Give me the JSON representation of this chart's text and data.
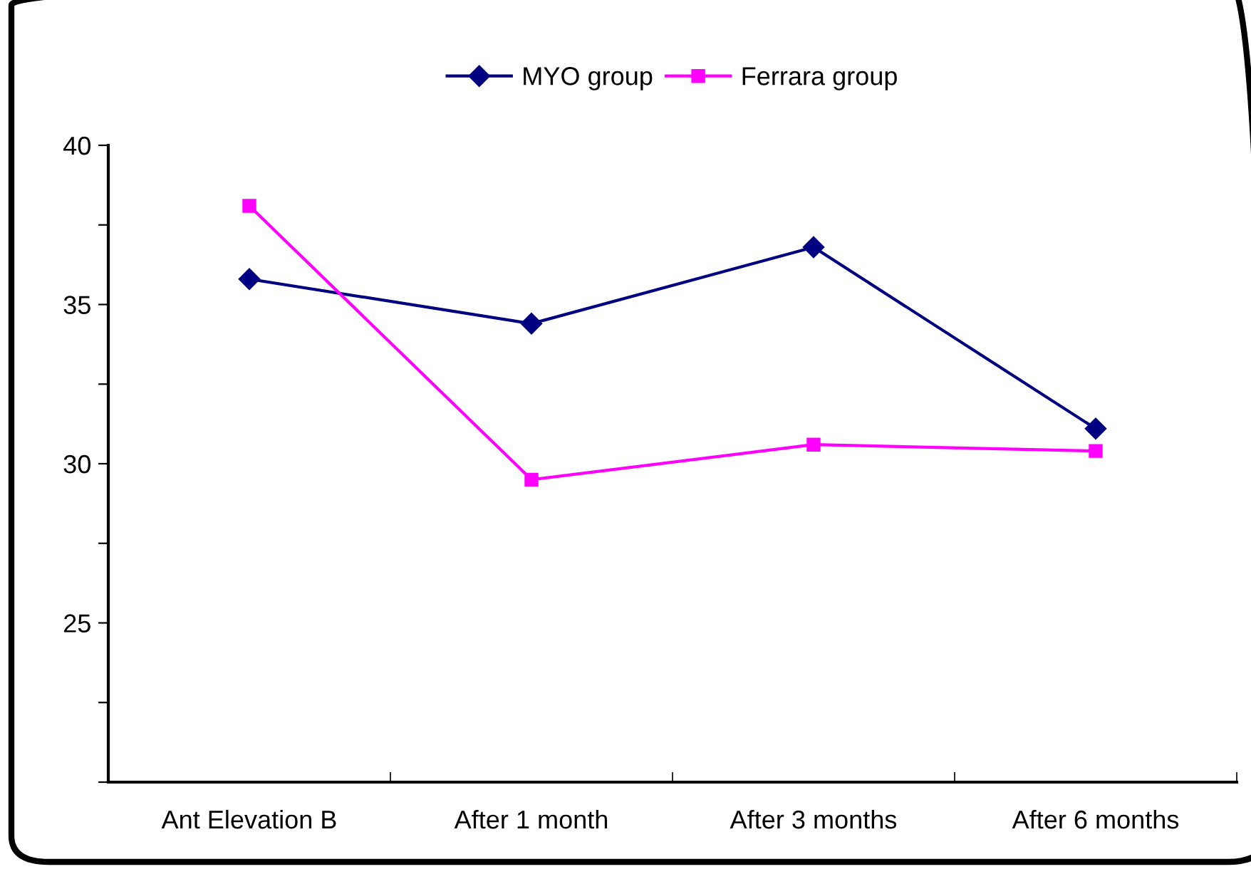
{
  "chart_data": {
    "type": "line",
    "categories": [
      "Ant Elevation B",
      "After 1 month",
      "After 3 months",
      "After 6 months"
    ],
    "series": [
      {
        "name": "MYO group",
        "color": "#000080",
        "marker": "diamond",
        "values": [
          35.8,
          34.4,
          36.8,
          31.1
        ]
      },
      {
        "name": "Ferrara group",
        "color": "#ff00ff",
        "marker": "square",
        "values": [
          38.1,
          29.5,
          30.6,
          30.4
        ]
      }
    ],
    "ylim": [
      20,
      40
    ],
    "yticks": [
      {
        "value": 20,
        "label": null
      },
      {
        "value": 22.5,
        "label": null
      },
      25,
      {
        "value": 27.5,
        "label": null
      },
      30,
      {
        "value": 32.5,
        "label": null
      },
      35,
      {
        "value": 37.5,
        "label": null
      },
      40
    ],
    "grid": false,
    "legend": "top",
    "line_style": "solid"
  }
}
